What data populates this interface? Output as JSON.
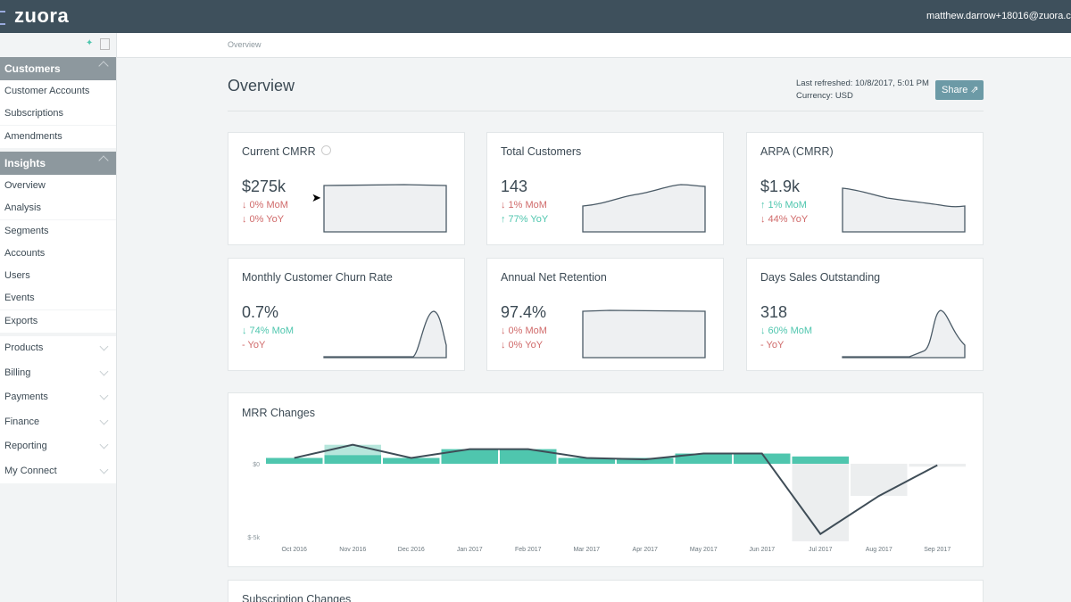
{
  "header": {
    "logo": "zuora",
    "user": "matthew.darrow+18016@zuora.com"
  },
  "sidebar": {
    "sections": [
      {
        "title": "Customers",
        "items": [
          "Customer Accounts",
          "Subscriptions",
          "Amendments"
        ]
      },
      {
        "title": "Insights",
        "items": [
          "Overview",
          "Analysis",
          "Segments",
          "Accounts",
          "Users",
          "Events",
          "Exports"
        ]
      }
    ],
    "menu": [
      "Products",
      "Billing",
      "Payments",
      "Finance",
      "Reporting",
      "My Connect"
    ]
  },
  "breadcrumb": "Overview",
  "page": {
    "title": "Overview",
    "refreshed": "Last refreshed: 10/8/2017, 5:01 PM",
    "currency": "Currency: USD",
    "share": "Share"
  },
  "metrics": [
    {
      "title": "Current CMRR",
      "value": "$275k",
      "changes": [
        {
          "text": "↓ 0% MoM",
          "tone": "bad"
        },
        {
          "text": "↓ 0% YoY",
          "tone": "bad"
        }
      ]
    },
    {
      "title": "Total Customers",
      "value": "143",
      "changes": [
        {
          "text": "↓ 1% MoM",
          "tone": "bad"
        },
        {
          "text": "↑ 77% YoY",
          "tone": "good"
        }
      ]
    },
    {
      "title": "ARPA (CMRR)",
      "value": "$1.9k",
      "changes": [
        {
          "text": "↑ 1% MoM",
          "tone": "good"
        },
        {
          "text": "↓ 44% YoY",
          "tone": "bad"
        }
      ]
    },
    {
      "title": "Monthly Customer Churn Rate",
      "value": "0.7%",
      "changes": [
        {
          "text": "↓ 74% MoM",
          "tone": "good"
        },
        {
          "text": "- YoY",
          "tone": "bad"
        }
      ]
    },
    {
      "title": "Annual Net Retention",
      "value": "97.4%",
      "changes": [
        {
          "text": "↓ 0% MoM",
          "tone": "bad"
        },
        {
          "text": "↓ 0% YoY",
          "tone": "bad"
        }
      ]
    },
    {
      "title": "Days Sales Outstanding",
      "value": "318",
      "changes": [
        {
          "text": "↓ 60% MoM",
          "tone": "good"
        },
        {
          "text": "- YoY",
          "tone": "bad"
        }
      ]
    }
  ],
  "chart_data": {
    "type": "bar",
    "title": "MRR Changes",
    "categories": [
      "Oct 2016",
      "Nov 2016",
      "Dec 2016",
      "Jan 2017",
      "Feb 2017",
      "Mar 2017",
      "Apr 2017",
      "May 2017",
      "Jun 2017",
      "Jul 2017",
      "Aug 2017",
      "Sep 2017"
    ],
    "series": [
      {
        "color": "#4fc6ae",
        "values": [
          0.4,
          0.6,
          0.4,
          1.0,
          1.0,
          0.4,
          0.4,
          0.7,
          0.7,
          0.5,
          0,
          0
        ]
      },
      {
        "color": "#b7e6dc",
        "values": [
          0,
          0.7,
          0,
          0,
          0,
          0,
          0,
          0,
          0,
          0,
          0,
          0
        ]
      },
      {
        "color": "#eceeef",
        "values": [
          0,
          0,
          0,
          0,
          0,
          0,
          0,
          0,
          0,
          -5.3,
          -2.2,
          -0.2
        ]
      },
      {
        "type": "line",
        "color": "#3f4d57",
        "values": [
          0.4,
          1.3,
          0.4,
          1.0,
          1.0,
          0.4,
          0.3,
          0.7,
          0.7,
          -4.8,
          -2.2,
          -0.1
        ]
      }
    ],
    "ylim": [
      -5.5,
      1.8
    ],
    "yticks": [
      {
        "value": 0,
        "label": "$0"
      },
      {
        "value": -5,
        "label": "$-5k"
      }
    ]
  },
  "next_card": {
    "title": "Subscription Changes"
  }
}
